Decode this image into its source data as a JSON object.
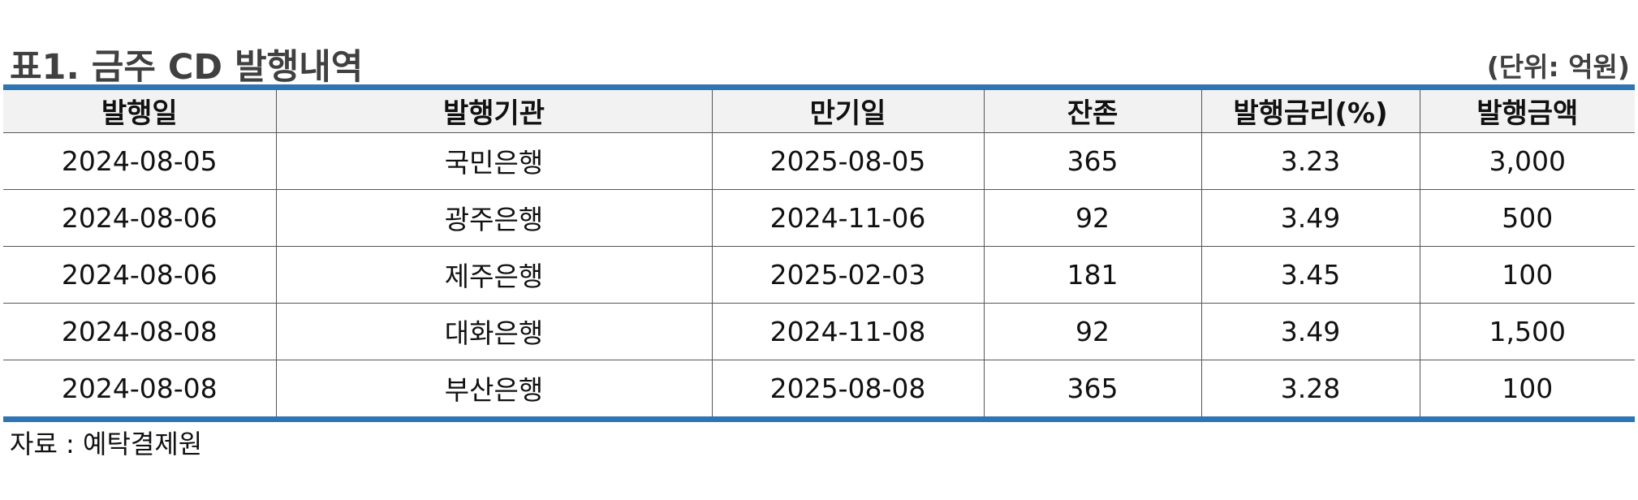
{
  "header": {
    "title": "표1. 금주 CD 발행내역",
    "unit": "(단위: 억원)"
  },
  "table": {
    "columns": [
      "발행일",
      "발행기관",
      "만기일",
      "잔존",
      "발행금리(%)",
      "발행금액"
    ],
    "rows": [
      [
        "2024-08-05",
        "국민은행",
        "2025-08-05",
        "365",
        "3.23",
        "3,000"
      ],
      [
        "2024-08-06",
        "광주은행",
        "2024-11-06",
        "92",
        "3.49",
        "500"
      ],
      [
        "2024-08-06",
        "제주은행",
        "2025-02-03",
        "181",
        "3.45",
        "100"
      ],
      [
        "2024-08-08",
        "대화은행",
        "2024-11-08",
        "92",
        "3.49",
        "1,500"
      ],
      [
        "2024-08-08",
        "부산은행",
        "2025-08-08",
        "365",
        "3.28",
        "100"
      ]
    ]
  },
  "footer": {
    "source": "자료 : 예탁결제원"
  },
  "colors": {
    "accent_bar": "#2e75b6",
    "header_bg": "#f2f2f2",
    "title_text": "#404040"
  }
}
